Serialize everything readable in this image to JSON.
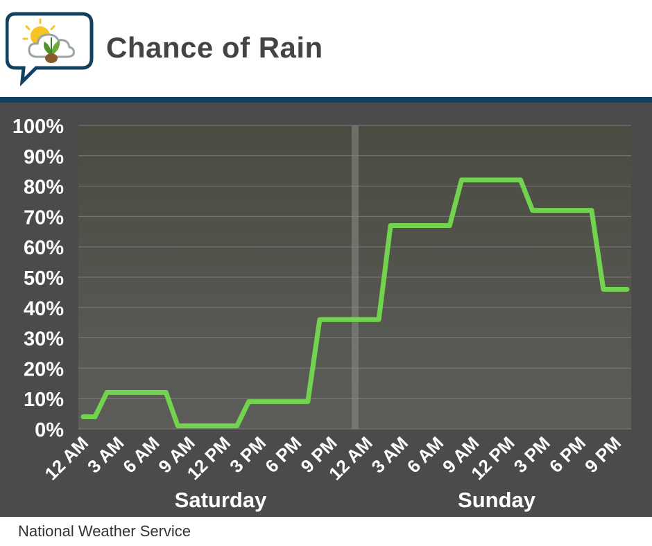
{
  "header": {
    "title": "Chance of Rain",
    "logo_icon": "weather-sun-cloud-leaf-icon"
  },
  "footer": {
    "source": "National Weather Service"
  },
  "colors": {
    "line": "#72d34f",
    "header_rule": "#12405f",
    "panel": "#4b4b4b"
  },
  "chart_data": {
    "type": "line",
    "title": "Chance of Rain",
    "xlabel": "",
    "ylabel": "",
    "ylim": [
      0,
      100
    ],
    "y_ticks": [
      "0%",
      "10%",
      "20%",
      "30%",
      "40%",
      "50%",
      "60%",
      "70%",
      "80%",
      "90%",
      "100%"
    ],
    "x_tick_labels": [
      "12 AM",
      "3 AM",
      "6 AM",
      "9 AM",
      "12 PM",
      "3 PM",
      "6 PM",
      "9 PM",
      "12 AM",
      "3 AM",
      "6 AM",
      "9 AM",
      "12 PM",
      "3 PM",
      "6 PM",
      "9 PM"
    ],
    "day_labels": [
      "Saturday",
      "Sunday"
    ],
    "grid": true,
    "series": [
      {
        "values": [
          4,
          4,
          12,
          12,
          12,
          12,
          12,
          12,
          1,
          1,
          1,
          1,
          1,
          1,
          9,
          9,
          9,
          9,
          9,
          9,
          36,
          36,
          36,
          36,
          36,
          36,
          67,
          67,
          67,
          67,
          67,
          67,
          82,
          82,
          82,
          82,
          82,
          82,
          72,
          72,
          72,
          72,
          72,
          72,
          46,
          46,
          46
        ]
      }
    ]
  }
}
